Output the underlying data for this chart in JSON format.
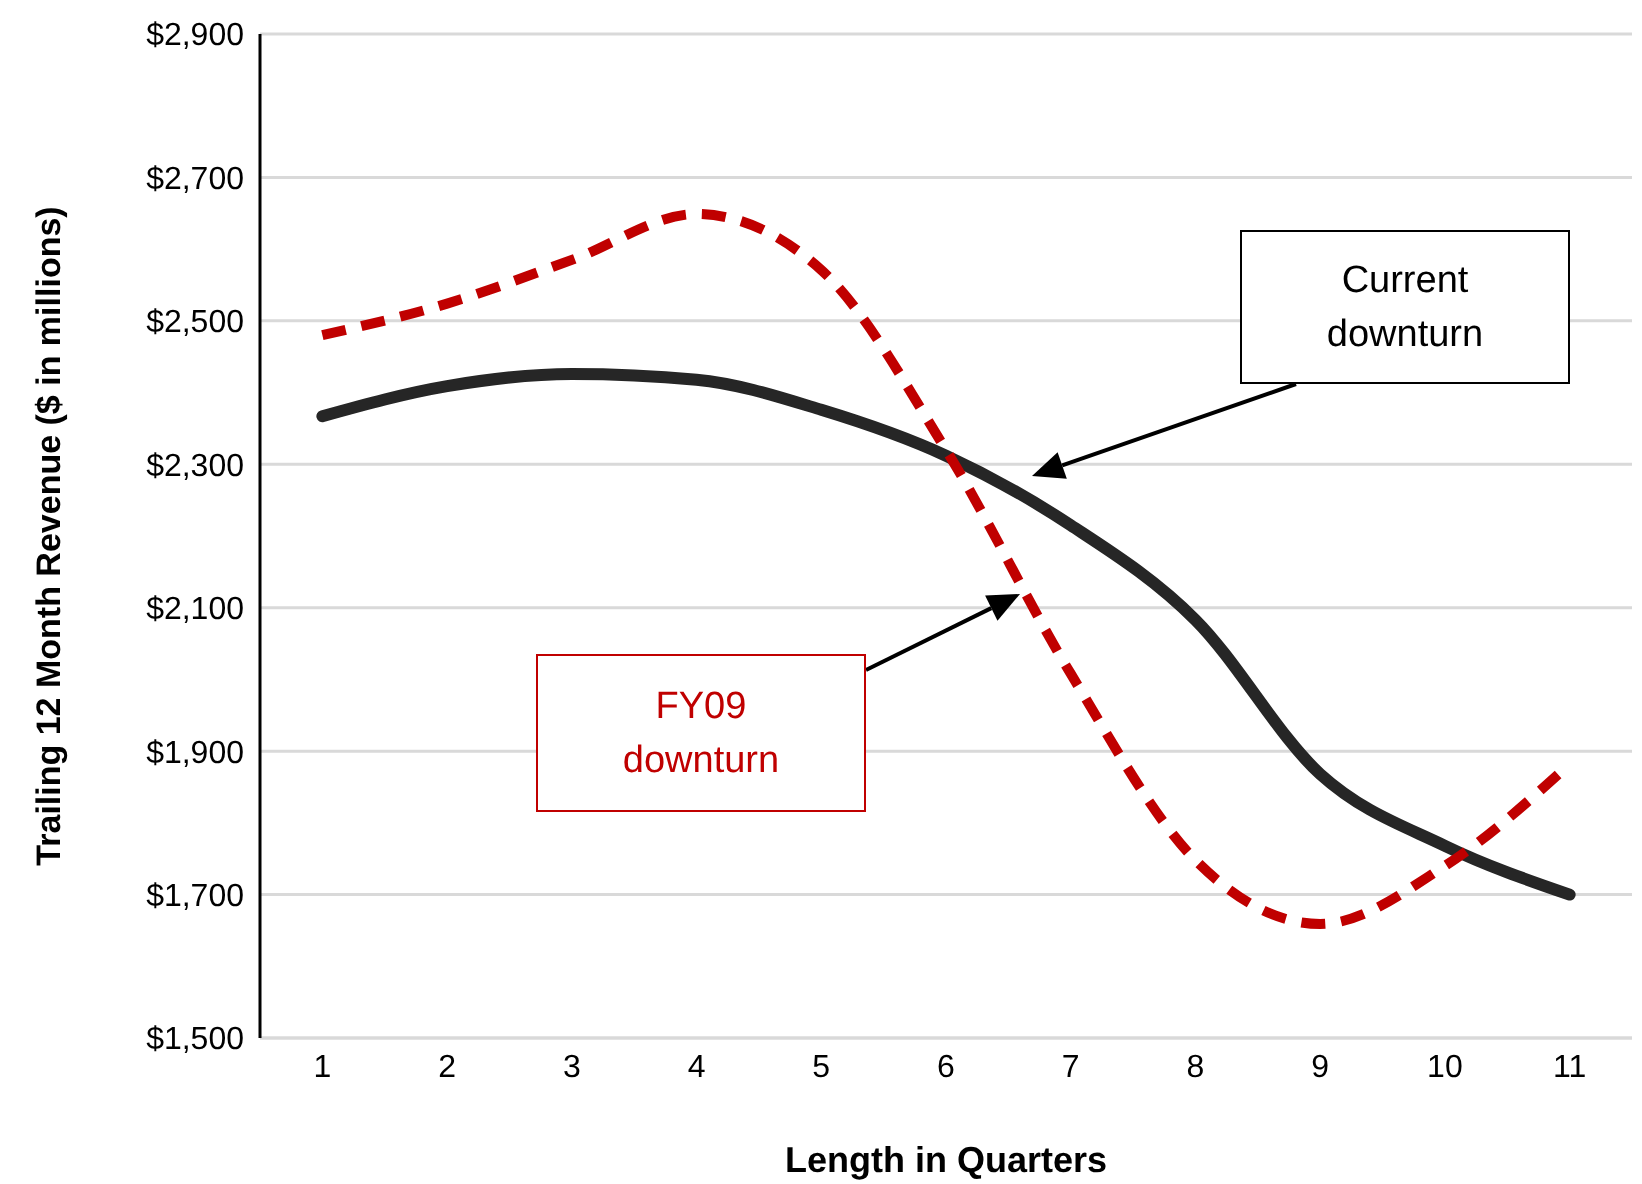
{
  "chart_data": {
    "type": "line",
    "xlabel": "Length in Quarters",
    "ylabel": "Trailing 12 Month Revenue ($ in millions)",
    "x": [
      1,
      2,
      3,
      4,
      5,
      6,
      7,
      8,
      9,
      10,
      11
    ],
    "series": [
      {
        "color": "#262626",
        "line_style": "solid",
        "values": [
          2367,
          2409,
          2426,
          2418,
          2376,
          2312,
          2215,
          2083,
          1868,
          1768,
          1700
        ]
      },
      {
        "color": "#c00000",
        "line_style": "dashed",
        "values": [
          2480,
          2524,
          2585,
          2649,
          2571,
          2320,
          2008,
          1748,
          1659,
          1740,
          1882
        ]
      }
    ],
    "xlim": [
      0.5,
      11.5
    ],
    "xticks": [
      1,
      2,
      3,
      4,
      5,
      6,
      7,
      8,
      9,
      10,
      11
    ],
    "ylim": [
      1500,
      2900
    ],
    "yticks": [
      {
        "value": 1500,
        "label": "$1,500"
      },
      {
        "value": 1700,
        "label": "$1,700"
      },
      {
        "value": 1900,
        "label": "$1,900"
      },
      {
        "value": 2100,
        "label": "$2,100"
      },
      {
        "value": 2300,
        "label": "$2,300"
      },
      {
        "value": 2500,
        "label": "$2,500"
      },
      {
        "value": 2700,
        "label": "$2,700"
      },
      {
        "value": 2900,
        "label": "$2,900"
      }
    ],
    "grid": "y",
    "marker": "none",
    "annotations": [
      "Current downturn",
      "FY09 downturn"
    ]
  }
}
